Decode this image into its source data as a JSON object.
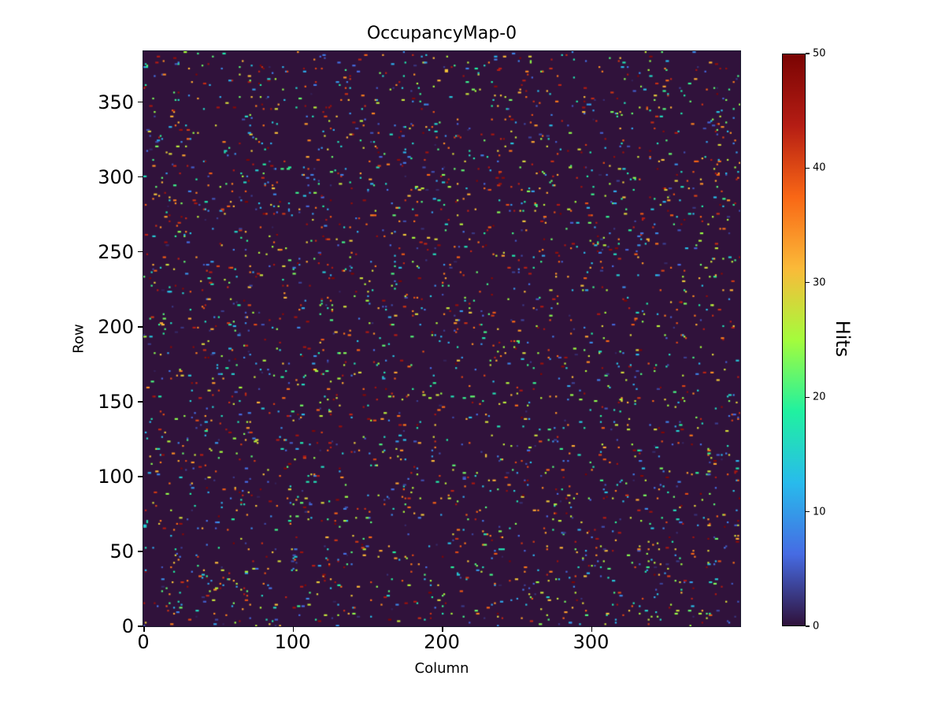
{
  "figure": {
    "background": "#ffffff",
    "text_color": "#000000"
  },
  "chart_data": {
    "type": "heatmap",
    "title": "OccupancyMap-0",
    "xlabel": "Column",
    "ylabel": "Row",
    "colorbar_label": "Hits",
    "n_cols": 400,
    "n_rows": 384,
    "x_range": [
      0,
      400
    ],
    "y_range": [
      0,
      384
    ],
    "x_ticks": [
      0,
      100,
      200,
      300
    ],
    "y_ticks": [
      0,
      50,
      100,
      150,
      200,
      250,
      300,
      350
    ],
    "colorbar_ticks": [
      0,
      10,
      20,
      30,
      40,
      50
    ],
    "vmin": 0,
    "vmax": 50,
    "colormap": "turbo",
    "colormap_stops": [
      {
        "t": 0.0,
        "color": "#30123b"
      },
      {
        "t": 0.125,
        "color": "#466be3"
      },
      {
        "t": 0.25,
        "color": "#28bbec"
      },
      {
        "t": 0.375,
        "color": "#20f1a0"
      },
      {
        "t": 0.5,
        "color": "#a4fc3c"
      },
      {
        "t": 0.625,
        "color": "#faba39"
      },
      {
        "t": 0.75,
        "color": "#f96715"
      },
      {
        "t": 0.875,
        "color": "#b51d14"
      },
      {
        "t": 1.0,
        "color": "#7a0403"
      }
    ],
    "background_value": 0,
    "data_description": "sparse random occupancy: ~2% of the 400x384 pixels contain hits with values uniformly distributed between 1 and 50; all other pixels are 0",
    "hit_density": 0.02,
    "hit_value_range": [
      1,
      50
    ],
    "dash_probability": 0.3,
    "seed": 7,
    "grid": false,
    "legend": false
  }
}
